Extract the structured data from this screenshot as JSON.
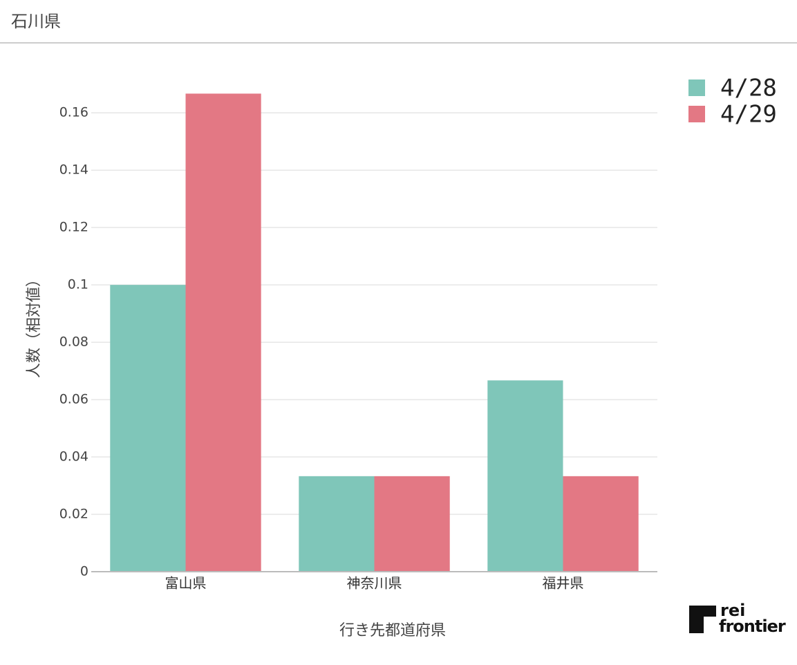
{
  "header": {
    "title": "石川県"
  },
  "logo": {
    "line1": "rei",
    "line2": "frontier"
  },
  "chart_data": {
    "type": "bar",
    "x_label": "行き先都道府県",
    "y_label": "人数（相対値）",
    "categories": [
      "富山県",
      "神奈川県",
      "福井県"
    ],
    "series": [
      {
        "name": "4/28",
        "color": "#7fc6b9",
        "values": [
          0.1,
          0.0333,
          0.0667
        ]
      },
      {
        "name": "4/29",
        "color": "#e37884",
        "values": [
          0.1667,
          0.0333,
          0.0333
        ]
      }
    ],
    "ylim": [
      0,
      0.175
    ],
    "yticks": [
      0,
      0.02,
      0.04,
      0.06,
      0.08,
      0.1,
      0.12,
      0.14,
      0.16
    ],
    "grid": true,
    "legend": "top-right"
  }
}
